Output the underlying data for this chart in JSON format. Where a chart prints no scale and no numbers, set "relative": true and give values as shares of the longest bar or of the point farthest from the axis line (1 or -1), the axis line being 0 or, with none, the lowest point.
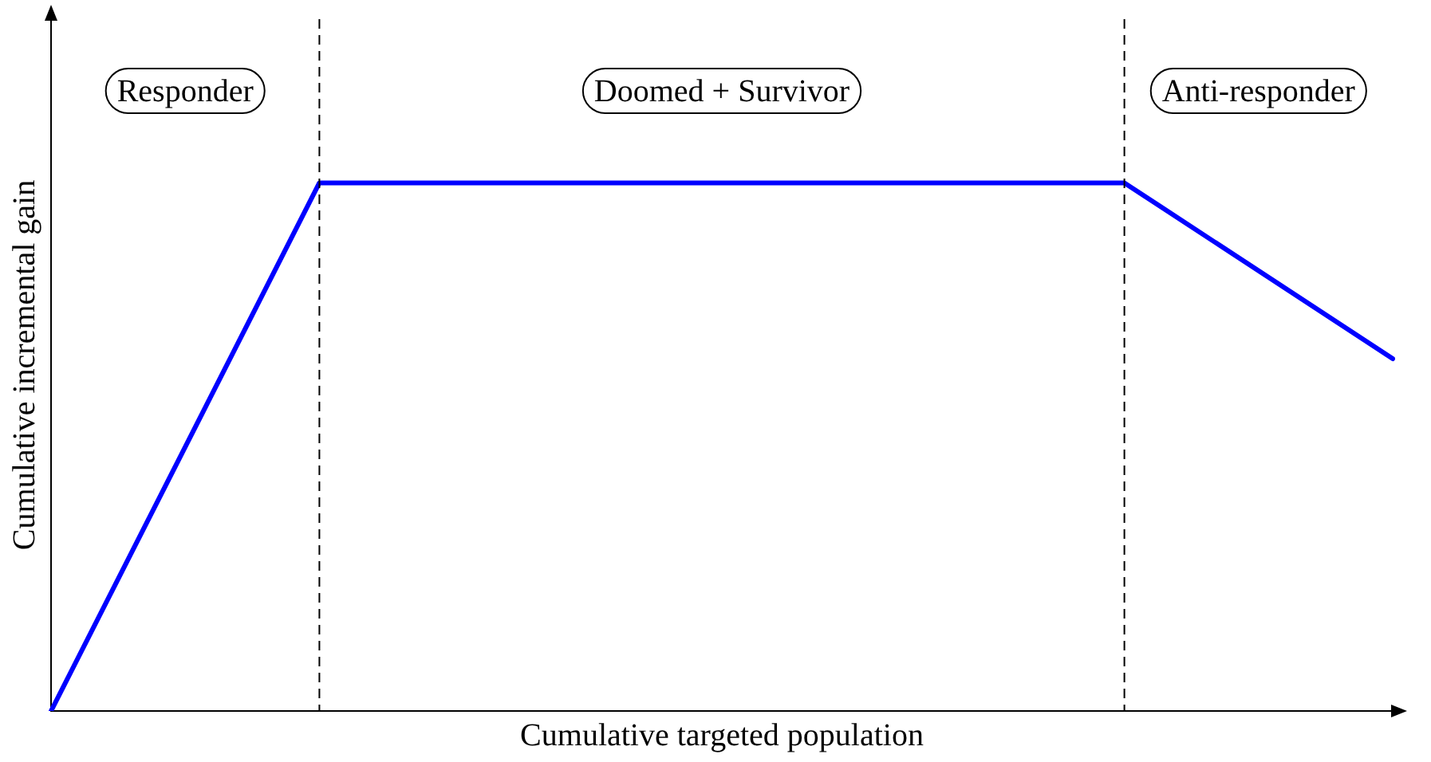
{
  "chart_data": {
    "type": "line",
    "relative": true,
    "xlabel": "Cumulative targeted population",
    "ylabel": "Cumulative incremental gain",
    "categories": [
      null,
      null,
      null,
      null,
      null,
      null
    ],
    "series": [
      {
        "color": "#0000ff",
        "values": [
          0,
          1,
          1,
          1,
          1,
          0.667
        ]
      }
    ],
    "annotations": [
      "Responder",
      "Doomed + Survivor",
      "Anti-responder"
    ],
    "legend": false,
    "marker": "none",
    "line_style": "solid"
  }
}
